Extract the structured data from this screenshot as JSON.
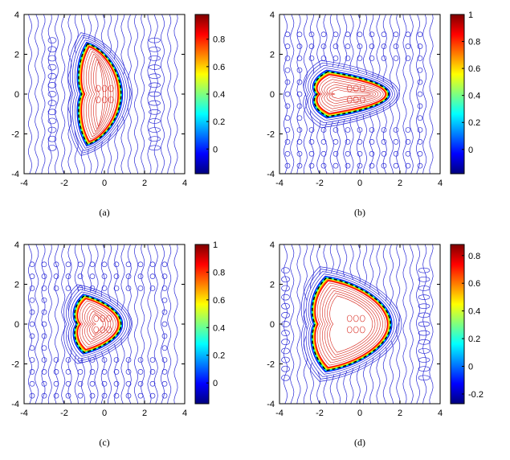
{
  "colors": {
    "outer_contour": "#2a2ad8",
    "inner_contour": "#d8261c",
    "boundary": "#000000",
    "axes": "#000000",
    "colorbar": [
      "#00007f",
      "#0000ff",
      "#007fff",
      "#00ffff",
      "#7fff7f",
      "#ffff00",
      "#ff7f00",
      "#ff0000",
      "#7f0000"
    ]
  },
  "chart_data": [
    {
      "type": "heatmap",
      "caption": "(a)",
      "xlim": [
        -4,
        4
      ],
      "ylim": [
        -4,
        4
      ],
      "x_ticks": [
        "-4",
        "-2",
        "0",
        "2",
        "4"
      ],
      "y_ticks": [
        "4",
        "2",
        "0",
        "-2",
        "-4"
      ],
      "shape": {
        "outer_left_x": -1.2,
        "inner_left_x": -0.9,
        "right_tip_x": 0.9,
        "tip_y": 2.6
      },
      "background": "stripes",
      "colorbar": {
        "range": [
          -0.18,
          0.98
        ],
        "ticks": [
          "0.8",
          "0.6",
          "0.4",
          "0.2",
          "0"
        ],
        "tick_values": [
          0.8,
          0.6,
          0.4,
          0.2,
          0
        ]
      }
    },
    {
      "type": "heatmap",
      "caption": "(b)",
      "xlim": [
        -4,
        4
      ],
      "ylim": [
        -4,
        4
      ],
      "x_ticks": [
        "-4",
        "-2",
        "0",
        "2",
        "4"
      ],
      "y_ticks": [
        "4",
        "2",
        "0",
        "-2",
        "-4"
      ],
      "shape": {
        "outer_left_x": -2.2,
        "inner_left_x": -1.6,
        "right_tip_x": 1.5,
        "tip_y": 1.2
      },
      "background": "stripes-grid",
      "colorbar": {
        "range": [
          -0.18,
          1.0
        ],
        "ticks": [
          "1",
          "0.8",
          "0.6",
          "0.4",
          "0.2",
          "0"
        ],
        "tick_values": [
          1,
          0.8,
          0.6,
          0.4,
          0.2,
          0
        ]
      }
    },
    {
      "type": "heatmap",
      "caption": "(c)",
      "xlim": [
        -4,
        4
      ],
      "ylim": [
        -4,
        4
      ],
      "x_ticks": [
        "-4",
        "-2",
        "0",
        "2",
        "4"
      ],
      "y_ticks": [
        "4",
        "2",
        "0",
        "-2",
        "-4"
      ],
      "shape": {
        "outer_left_x": -1.4,
        "inner_left_x": -0.8,
        "right_tip_x": 0.9,
        "tip_y": 1.5
      },
      "background": "stripes-grid",
      "colorbar": {
        "range": [
          -0.15,
          1.0
        ],
        "ticks": [
          "1",
          "0.8",
          "0.6",
          "0.4",
          "0.2",
          "0"
        ],
        "tick_values": [
          1,
          0.8,
          0.6,
          0.4,
          0.2,
          0
        ]
      }
    },
    {
      "type": "heatmap",
      "caption": "(d)",
      "xlim": [
        -4,
        4
      ],
      "ylim": [
        -4,
        4
      ],
      "x_ticks": [
        "-4",
        "-2",
        "0",
        "2",
        "4"
      ],
      "y_ticks": [
        "4",
        "2",
        "0",
        "-2",
        "-4"
      ],
      "shape": {
        "outer_left_x": -2.3,
        "inner_left_x": -1.5,
        "right_tip_x": 1.6,
        "tip_y": 2.4
      },
      "background": "stripes",
      "colorbar": {
        "range": [
          -0.27,
          0.88
        ],
        "ticks": [
          "0.8",
          "0.6",
          "0.4",
          "0.2",
          "0",
          "-0.2"
        ],
        "tick_values": [
          0.8,
          0.6,
          0.4,
          0.2,
          0,
          -0.2
        ]
      }
    }
  ]
}
